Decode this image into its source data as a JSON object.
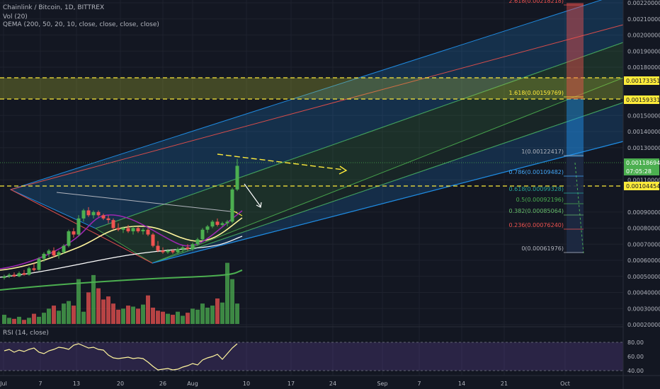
{
  "legend": {
    "title": "Chainlink / Bitcoin, 1D, BITTREX",
    "volume": "Vol (20)",
    "qema": "QEMA (200, 50, 20, 10, close, close, close, close)",
    "rsi": "RSI (14, close)"
  },
  "colors": {
    "background": "#131722",
    "up": "#4caf50",
    "down": "#ef5350",
    "channel": "#2196f3",
    "fib_guide": "#ffeb3b"
  },
  "price_axis": {
    "labels": [
      "0.00220000",
      "0.00210000",
      "0.00200000",
      "0.00190000",
      "0.00180000",
      "0.00150000",
      "0.00140000",
      "0.00130000",
      "0.00110000",
      "0.00090000",
      "0.00080000",
      "0.00070000",
      "0.00060000",
      "0.00050000",
      "0.00040000",
      "0.00030000",
      "0.00020000"
    ],
    "badges": [
      {
        "text": "0.00173351",
        "color": "#ffeb3b"
      },
      {
        "text": "0.00159331",
        "color": "#ffeb3b"
      },
      {
        "text": "0.00118694",
        "color": "#4caf50"
      },
      {
        "text": "07:05:28",
        "color": "#4caf50"
      },
      {
        "text": "0.00104454",
        "color": "#ffeb3b"
      }
    ]
  },
  "rsi_axis": {
    "labels": [
      "80.00",
      "60.00",
      "40.00"
    ]
  },
  "time_axis": {
    "labels": [
      "Jul",
      "7",
      "13",
      "20",
      "26",
      "Aug",
      "10",
      "17",
      "24",
      "Sep",
      "7",
      "14",
      "21",
      "Oct"
    ]
  },
  "fib_levels": [
    {
      "label": "2.618(0.00218218)",
      "color": "#ef5350"
    },
    {
      "label": "1.618(0.00159769)",
      "color": "#ffeb3b"
    },
    {
      "label": "1(0.00122417)",
      "color": "#b2b5be"
    },
    {
      "label": "0.786(0.00109482)",
      "color": "#42a5f5"
    },
    {
      "label": "0.618(0.00099328)",
      "color": "#26a69a"
    },
    {
      "label": "0.5(0.00092196)",
      "color": "#4caf50"
    },
    {
      "label": "0.382(0.00085064)",
      "color": "#66bb6a"
    },
    {
      "label": "0.236(0.00076240)",
      "color": "#ef5350"
    },
    {
      "label": "0(0.00061976)",
      "color": "#b2b5be"
    }
  ],
  "chart_data": {
    "type": "candlestick",
    "ylim": [
      0.00018,
      0.00222
    ],
    "candles": [
      {
        "o": 0.00049,
        "h": 0.00051,
        "l": 0.00048,
        "c": 0.0005
      },
      {
        "o": 0.0005,
        "h": 0.00052,
        "l": 0.00049,
        "c": 0.00051
      },
      {
        "o": 0.00051,
        "h": 0.000525,
        "l": 0.000495,
        "c": 0.0005
      },
      {
        "o": 0.0005,
        "h": 0.00053,
        "l": 0.000495,
        "c": 0.00052
      },
      {
        "o": 0.00052,
        "h": 0.00054,
        "l": 0.000505,
        "c": 0.00051
      },
      {
        "o": 0.00051,
        "h": 0.00056,
        "l": 0.000505,
        "c": 0.00055
      },
      {
        "o": 0.00055,
        "h": 0.00058,
        "l": 0.00053,
        "c": 0.00054
      },
      {
        "o": 0.00054,
        "h": 0.00062,
        "l": 0.000535,
        "c": 0.00061
      },
      {
        "o": 0.00061,
        "h": 0.00065,
        "l": 0.00059,
        "c": 0.00064
      },
      {
        "o": 0.00064,
        "h": 0.00067,
        "l": 0.00062,
        "c": 0.00066
      },
      {
        "o": 0.00066,
        "h": 0.00068,
        "l": 0.00062,
        "c": 0.00063
      },
      {
        "o": 0.00063,
        "h": 0.00066,
        "l": 0.00061,
        "c": 0.00065
      },
      {
        "o": 0.00065,
        "h": 0.0007,
        "l": 0.00064,
        "c": 0.00069
      },
      {
        "o": 0.00069,
        "h": 0.00079,
        "l": 0.00068,
        "c": 0.00078
      },
      {
        "o": 0.00078,
        "h": 0.0008,
        "l": 0.00074,
        "c": 0.00076
      },
      {
        "o": 0.00076,
        "h": 0.00088,
        "l": 0.00075,
        "c": 0.00086
      },
      {
        "o": 0.00086,
        "h": 0.00092,
        "l": 0.00084,
        "c": 0.00091
      },
      {
        "o": 0.00091,
        "h": 0.00093,
        "l": 0.00087,
        "c": 0.00088
      },
      {
        "o": 0.00088,
        "h": 0.00091,
        "l": 0.00086,
        "c": 0.0009
      },
      {
        "o": 0.0009,
        "h": 0.00091,
        "l": 0.00087,
        "c": 0.00088
      },
      {
        "o": 0.00088,
        "h": 0.00089,
        "l": 0.00085,
        "c": 0.00086
      },
      {
        "o": 0.00086,
        "h": 0.00088,
        "l": 0.00083,
        "c": 0.00085
      },
      {
        "o": 0.00085,
        "h": 0.00086,
        "l": 0.00079,
        "c": 0.0008
      },
      {
        "o": 0.0008,
        "h": 0.00083,
        "l": 0.00078,
        "c": 0.00079
      },
      {
        "o": 0.00079,
        "h": 0.00081,
        "l": 0.00077,
        "c": 0.0008
      },
      {
        "o": 0.0008,
        "h": 0.00082,
        "l": 0.00077,
        "c": 0.00078
      },
      {
        "o": 0.00078,
        "h": 0.00081,
        "l": 0.00076,
        "c": 0.0008
      },
      {
        "o": 0.0008,
        "h": 0.00081,
        "l": 0.00077,
        "c": 0.00078
      },
      {
        "o": 0.00078,
        "h": 0.0008,
        "l": 0.00076,
        "c": 0.00079
      },
      {
        "o": 0.00079,
        "h": 0.0008,
        "l": 0.00075,
        "c": 0.00076
      },
      {
        "o": 0.00076,
        "h": 0.00077,
        "l": 0.00068,
        "c": 0.00069
      },
      {
        "o": 0.00069,
        "h": 0.00072,
        "l": 0.00065,
        "c": 0.00066
      },
      {
        "o": 0.00066,
        "h": 0.00068,
        "l": 0.00064,
        "c": 0.00065
      },
      {
        "o": 0.00065,
        "h": 0.00067,
        "l": 0.00064,
        "c": 0.00066
      },
      {
        "o": 0.00066,
        "h": 0.00067,
        "l": 0.00064,
        "c": 0.00065
      },
      {
        "o": 0.00065,
        "h": 0.00068,
        "l": 0.00064,
        "c": 0.00067
      },
      {
        "o": 0.00067,
        "h": 0.00069,
        "l": 0.00065,
        "c": 0.00068
      },
      {
        "o": 0.00068,
        "h": 0.0007,
        "l": 0.00066,
        "c": 0.00067
      },
      {
        "o": 0.00067,
        "h": 0.00071,
        "l": 0.00066,
        "c": 0.0007
      },
      {
        "o": 0.0007,
        "h": 0.00074,
        "l": 0.00069,
        "c": 0.00073
      },
      {
        "o": 0.00073,
        "h": 0.0008,
        "l": 0.00072,
        "c": 0.00079
      },
      {
        "o": 0.00079,
        "h": 0.00082,
        "l": 0.00077,
        "c": 0.00081
      },
      {
        "o": 0.00081,
        "h": 0.00085,
        "l": 0.0008,
        "c": 0.00084
      },
      {
        "o": 0.00084,
        "h": 0.00086,
        "l": 0.00081,
        "c": 0.00082
      },
      {
        "o": 0.00082,
        "h": 0.00084,
        "l": 0.00081,
        "c": 0.00083
      },
      {
        "o": 0.00083,
        "h": 0.00085,
        "l": 0.00081,
        "c": 0.00084
      },
      {
        "o": 0.00084,
        "h": 0.00105,
        "l": 0.00083,
        "c": 0.00104
      },
      {
        "o": 0.00104,
        "h": 0.00123,
        "l": 0.00103,
        "c": 0.001187
      }
    ],
    "volume": [
      18,
      12,
      10,
      14,
      8,
      12,
      20,
      14,
      22,
      30,
      36,
      26,
      40,
      45,
      36,
      88,
      24,
      62,
      96,
      70,
      48,
      54,
      40,
      28,
      30,
      36,
      34,
      30,
      38,
      56,
      32,
      26,
      24,
      20,
      18,
      24,
      16,
      22,
      30,
      28,
      40,
      32,
      36,
      50,
      42,
      120,
      88,
      40
    ],
    "rsi": [
      68,
      70,
      66,
      69,
      67,
      70,
      72,
      66,
      64,
      68,
      70,
      73,
      72,
      70,
      76,
      78,
      75,
      72,
      73,
      70,
      69,
      62,
      58,
      57,
      58,
      59,
      57,
      58,
      57,
      52,
      46,
      41,
      42,
      43,
      41,
      42,
      45,
      47,
      50,
      48,
      55,
      58,
      60,
      63,
      56,
      64,
      72,
      78
    ],
    "qema_lines": [
      {
        "name": "QEMA 10",
        "color": "#7b1fa2"
      },
      {
        "name": "QEMA 20",
        "color": "#fff59d"
      },
      {
        "name": "QEMA 50",
        "color": "#ffffff"
      },
      {
        "name": "QEMA 200",
        "color": "#4caf50"
      }
    ]
  }
}
